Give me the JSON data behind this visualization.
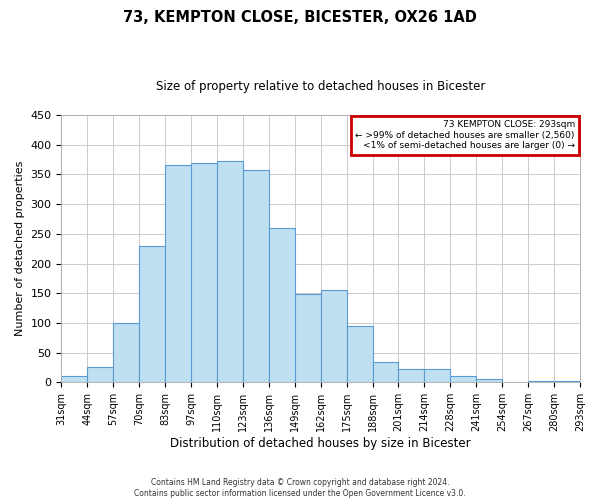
{
  "title": "73, KEMPTON CLOSE, BICESTER, OX26 1AD",
  "subtitle": "Size of property relative to detached houses in Bicester",
  "xlabel": "Distribution of detached houses by size in Bicester",
  "ylabel": "Number of detached properties",
  "bar_labels": [
    "31sqm",
    "44sqm",
    "57sqm",
    "70sqm",
    "83sqm",
    "97sqm",
    "110sqm",
    "123sqm",
    "136sqm",
    "149sqm",
    "162sqm",
    "175sqm",
    "188sqm",
    "201sqm",
    "214sqm",
    "228sqm",
    "241sqm",
    "254sqm",
    "267sqm",
    "280sqm",
    "293sqm"
  ],
  "bar_values": [
    10,
    25,
    100,
    230,
    365,
    370,
    373,
    357,
    260,
    148,
    155,
    95,
    35,
    22,
    22,
    10,
    5,
    0,
    2,
    2
  ],
  "bar_color": "#bee0f0",
  "bar_edge_color": "#5b9bd5",
  "ylim": [
    0,
    450
  ],
  "yticks": [
    0,
    50,
    100,
    150,
    200,
    250,
    300,
    350,
    400,
    450
  ],
  "legend_title": "73 KEMPTON CLOSE: 293sqm",
  "legend_line1": "← >99% of detached houses are smaller (2,560)",
  "legend_line2": "<1% of semi-detached houses are larger (0) →",
  "legend_box_color": "#cc0000",
  "footer_line1": "Contains HM Land Registry data © Crown copyright and database right 2024.",
  "footer_line2": "Contains public sector information licensed under the Open Government Licence v3.0.",
  "bg_color": "#ffffff",
  "grid_color": "#cccccc"
}
